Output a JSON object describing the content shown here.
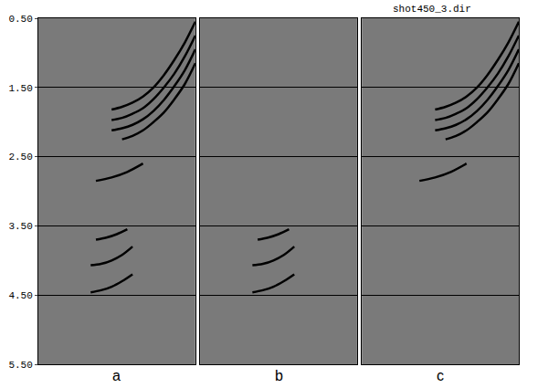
{
  "title": "shot450_3.dir",
  "chart_data": [
    {
      "type": "line",
      "panel": "a",
      "grid": true,
      "tick_labels": "y",
      "xlim": [
        0,
        60
      ],
      "ylim": [
        0.5,
        5.5
      ],
      "yticks": [
        {
          "value": 0.5,
          "label": "0.50"
        },
        {
          "value": 1.5,
          "label": "1.50"
        },
        {
          "value": 2.5,
          "label": "2.50"
        },
        {
          "value": 3.5,
          "label": "3.50"
        },
        {
          "value": 4.5,
          "label": "4.50"
        },
        {
          "value": 5.5,
          "label": "5.50"
        }
      ],
      "series": [
        {
          "color": "#000000",
          "x": [
            60,
            56,
            52,
            48,
            44,
            40,
            36,
            32,
            28
          ],
          "values": [
            0.55,
            0.85,
            1.1,
            1.32,
            1.5,
            1.63,
            1.72,
            1.78,
            1.82
          ]
        },
        {
          "color": "#000000",
          "x": [
            60,
            56,
            52,
            48,
            44,
            40,
            36,
            32,
            28
          ],
          "values": [
            0.75,
            1.05,
            1.3,
            1.5,
            1.67,
            1.8,
            1.88,
            1.94,
            1.97
          ]
        },
        {
          "color": "#000000",
          "x": [
            60,
            56,
            52,
            48,
            44,
            40,
            36,
            32,
            28
          ],
          "values": [
            0.95,
            1.25,
            1.48,
            1.68,
            1.84,
            1.96,
            2.04,
            2.09,
            2.12
          ]
        },
        {
          "color": "#000000",
          "x": [
            60,
            56,
            52,
            48,
            44,
            40,
            36,
            32
          ],
          "values": [
            1.15,
            1.45,
            1.67,
            1.86,
            2.0,
            2.12,
            2.2,
            2.25
          ]
        },
        {
          "color": "#000000",
          "x": [
            40,
            34,
            28,
            22
          ],
          "values": [
            2.6,
            2.72,
            2.8,
            2.85
          ]
        },
        {
          "color": "#000000",
          "x": [
            34,
            30,
            26,
            22
          ],
          "values": [
            3.55,
            3.62,
            3.67,
            3.7
          ]
        },
        {
          "color": "#000000",
          "x": [
            36,
            32,
            28,
            24,
            20
          ],
          "values": [
            3.8,
            3.92,
            4.0,
            4.05,
            4.07
          ]
        },
        {
          "color": "#000000",
          "x": [
            36,
            32,
            28,
            24,
            20
          ],
          "values": [
            4.2,
            4.3,
            4.38,
            4.43,
            4.46
          ]
        }
      ]
    },
    {
      "type": "line",
      "panel": "b",
      "grid": true,
      "tick_labels": false,
      "xlim": [
        0,
        60
      ],
      "ylim": [
        0.5,
        5.5
      ],
      "yticks": [
        {
          "value": 0.5,
          "label": "0.50"
        },
        {
          "value": 1.5,
          "label": "1.50"
        },
        {
          "value": 2.5,
          "label": "2.50"
        },
        {
          "value": 3.5,
          "label": "3.50"
        },
        {
          "value": 4.5,
          "label": "4.50"
        },
        {
          "value": 5.5,
          "label": "5.50"
        }
      ],
      "series": [
        {
          "color": "#000000",
          "x": [
            34,
            30,
            26,
            22
          ],
          "values": [
            3.55,
            3.62,
            3.67,
            3.7
          ]
        },
        {
          "color": "#000000",
          "x": [
            36,
            32,
            28,
            24,
            20
          ],
          "values": [
            3.8,
            3.92,
            4.0,
            4.05,
            4.07
          ]
        },
        {
          "color": "#000000",
          "x": [
            36,
            32,
            28,
            24,
            20
          ],
          "values": [
            4.2,
            4.3,
            4.38,
            4.43,
            4.46
          ]
        }
      ]
    },
    {
      "type": "line",
      "panel": "c",
      "grid": true,
      "tick_labels": false,
      "xlim": [
        0,
        60
      ],
      "ylim": [
        0.5,
        5.5
      ],
      "yticks": [
        {
          "value": 0.5,
          "label": "0.50"
        },
        {
          "value": 1.5,
          "label": "1.50"
        },
        {
          "value": 2.5,
          "label": "2.50"
        },
        {
          "value": 3.5,
          "label": "3.50"
        },
        {
          "value": 4.5,
          "label": "4.50"
        },
        {
          "value": 5.5,
          "label": "5.50"
        }
      ],
      "series": [
        {
          "color": "#000000",
          "x": [
            60,
            56,
            52,
            48,
            44,
            40,
            36,
            32,
            28
          ],
          "values": [
            0.55,
            0.85,
            1.1,
            1.32,
            1.5,
            1.63,
            1.72,
            1.78,
            1.82
          ]
        },
        {
          "color": "#000000",
          "x": [
            60,
            56,
            52,
            48,
            44,
            40,
            36,
            32,
            28
          ],
          "values": [
            0.75,
            1.05,
            1.3,
            1.5,
            1.67,
            1.8,
            1.88,
            1.94,
            1.97
          ]
        },
        {
          "color": "#000000",
          "x": [
            60,
            56,
            52,
            48,
            44,
            40,
            36,
            32,
            28
          ],
          "values": [
            0.95,
            1.25,
            1.48,
            1.68,
            1.84,
            1.96,
            2.04,
            2.09,
            2.12
          ]
        },
        {
          "color": "#000000",
          "x": [
            60,
            56,
            52,
            48,
            44,
            40,
            36,
            32
          ],
          "values": [
            1.15,
            1.45,
            1.67,
            1.86,
            2.0,
            2.12,
            2.2,
            2.25
          ]
        },
        {
          "color": "#000000",
          "x": [
            40,
            34,
            28,
            22
          ],
          "values": [
            2.6,
            2.72,
            2.8,
            2.85
          ]
        }
      ]
    }
  ]
}
